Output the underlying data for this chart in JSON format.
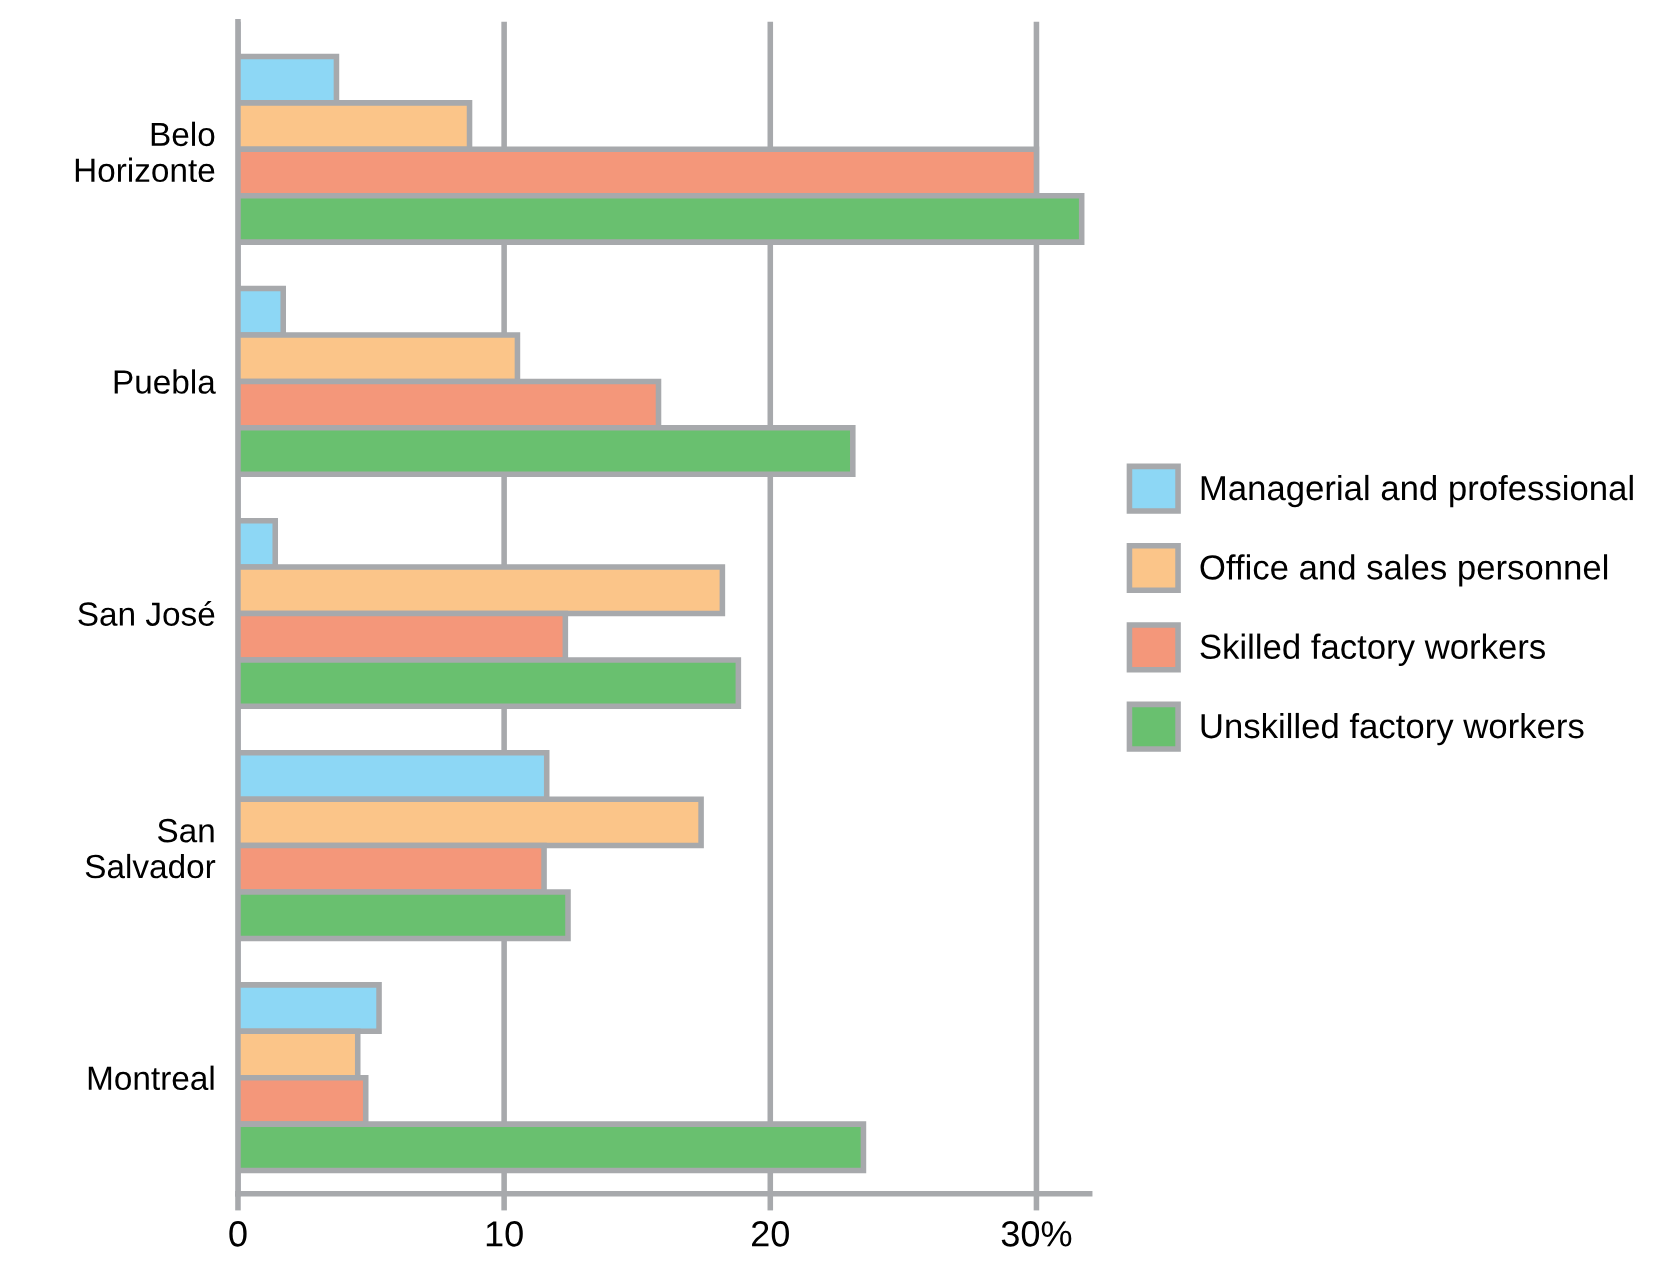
{
  "chart_data": {
    "type": "bar",
    "orientation": "horizontal",
    "categories": [
      "Belo\nHorizonte",
      "Puebla",
      "San José",
      "San\nSalvador",
      "Montreal"
    ],
    "series": [
      {
        "name": "Managerial and professional",
        "color": "#8dd7f5",
        "values": [
          3.7,
          1.7,
          1.4,
          11.6,
          5.3
        ]
      },
      {
        "name": "Office and sales personnel",
        "color": "#fbc589",
        "values": [
          8.7,
          10.5,
          18.2,
          17.4,
          4.5
        ]
      },
      {
        "name": "Skilled factory workers",
        "color": "#f4977a",
        "values": [
          30.0,
          15.8,
          12.3,
          11.5,
          4.8
        ]
      },
      {
        "name": "Unskilled factory workers",
        "color": "#69c06f",
        "values": [
          31.7,
          23.1,
          18.8,
          12.4,
          23.5
        ]
      }
    ],
    "xlim": [
      0,
      32
    ],
    "xticks": [
      0,
      10,
      20,
      {
        "value": 30,
        "label": "30%"
      }
    ],
    "grid": "x",
    "legend": "right"
  }
}
